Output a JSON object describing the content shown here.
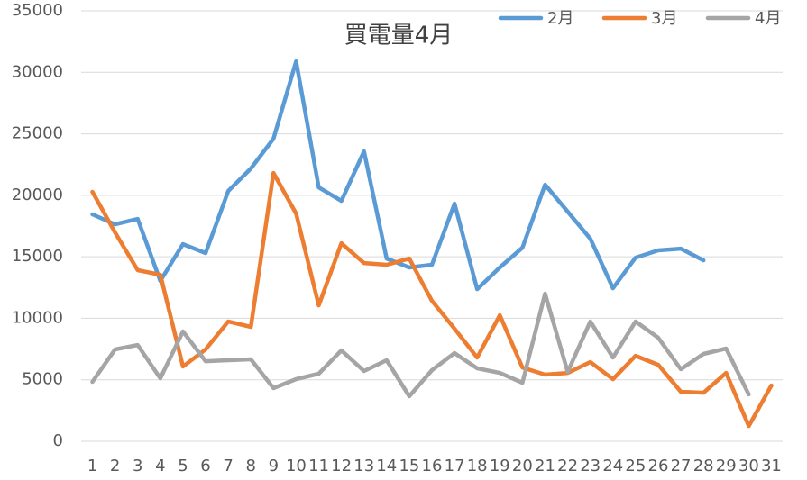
{
  "chart_data": {
    "type": "line",
    "title": "買電量4月",
    "categories": [
      "1",
      "2",
      "3",
      "4",
      "5",
      "6",
      "7",
      "8",
      "9",
      "10",
      "11",
      "12",
      "13",
      "14",
      "15",
      "16",
      "17",
      "18",
      "19",
      "20",
      "21",
      "22",
      "23",
      "24",
      "25",
      "26",
      "27",
      "28",
      "29",
      "30",
      "31"
    ],
    "series": [
      {
        "name": "2月",
        "color": "#5b9bd5",
        "values": [
          18450,
          17640,
          18080,
          13030,
          16030,
          15300,
          20350,
          22180,
          24600,
          30890,
          20640,
          19540,
          23570,
          14860,
          14130,
          14350,
          19320,
          12370,
          14130,
          15740,
          20860,
          18670,
          16470,
          12440,
          14930,
          15520,
          15660,
          14710,
          null,
          null,
          null
        ]
      },
      {
        "name": "3月",
        "color": "#ed7d31",
        "values": [
          20280,
          16980,
          13910,
          13540,
          6080,
          7470,
          9740,
          9300,
          21810,
          18520,
          11050,
          16100,
          14490,
          14350,
          14860,
          11420,
          9150,
          6810,
          10250,
          6000,
          5420,
          5560,
          6440,
          5050,
          6950,
          6220,
          4030,
          3950,
          5560,
          1240,
          4540
        ]
      },
      {
        "name": "4月",
        "color": "#a5a5a5",
        "values": [
          4830,
          7470,
          7830,
          5120,
          8930,
          6510,
          6590,
          6660,
          4320,
          5050,
          5490,
          7390,
          5710,
          6590,
          3660,
          5780,
          7170,
          5930,
          5560,
          4760,
          12000,
          5640,
          9740,
          6810,
          9740,
          8420,
          5860,
          7100,
          7540,
          3810,
          null
        ]
      }
    ],
    "ylim": [
      0,
      35000
    ],
    "yticks": [
      0,
      5000,
      10000,
      15000,
      20000,
      25000,
      30000,
      35000
    ],
    "grid": true,
    "legend": "top-right"
  }
}
